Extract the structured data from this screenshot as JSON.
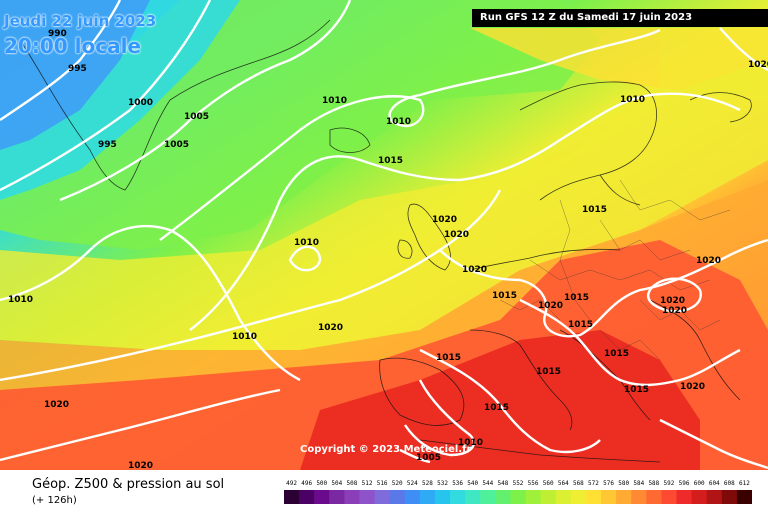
{
  "header": {
    "valid_date": "Jeudi 22 juin 2023",
    "valid_time": "20:00 locale",
    "run_info": "Run GFS 12 Z du Samedi 17 juin 2023"
  },
  "footer": {
    "title": "Géop. Z500 & pression au sol",
    "lead_time": "(+ 126h)",
    "copyright": "Copyright © 2023 Meteociel.fr"
  },
  "scale": {
    "labels": [
      "492",
      "496",
      "500",
      "504",
      "508",
      "512",
      "516",
      "520",
      "524",
      "528",
      "532",
      "536",
      "540",
      "544",
      "548",
      "552",
      "556",
      "560",
      "564",
      "568",
      "572",
      "576",
      "580",
      "584",
      "588",
      "592",
      "596",
      "600",
      "604",
      "608",
      "612"
    ],
    "colors": [
      "#2b0033",
      "#4b0066",
      "#6a0a8c",
      "#7a29a3",
      "#8a3fb8",
      "#8f53c9",
      "#7f6bd9",
      "#5a78e8",
      "#3f8ef5",
      "#2faaf5",
      "#27c4ee",
      "#31dbe0",
      "#3fe8c2",
      "#4ff09a",
      "#63f06e",
      "#7ef04a",
      "#9ef03a",
      "#bfef33",
      "#dbef33",
      "#f0ee33",
      "#ffe033",
      "#ffc733",
      "#ffaa33",
      "#ff8a33",
      "#ff6a33",
      "#ff4a33",
      "#ee2a2a",
      "#d41e1e",
      "#b01414",
      "#800a0a",
      "#3a0000"
    ]
  },
  "isobars": {
    "labels": [
      "990",
      "995",
      "1000",
      "1005",
      "995",
      "1005",
      "1010",
      "1010",
      "1015",
      "1020",
      "1020",
      "1010",
      "1020",
      "1015",
      "1010",
      "1010",
      "1020",
      "1020",
      "1015",
      "1020",
      "1015",
      "1015",
      "1015",
      "1020",
      "1020",
      "1020",
      "1010",
      "1020",
      "1015",
      "1015",
      "1015",
      "1005",
      "1010",
      "1020",
      "1015",
      "1020"
    ]
  }
}
